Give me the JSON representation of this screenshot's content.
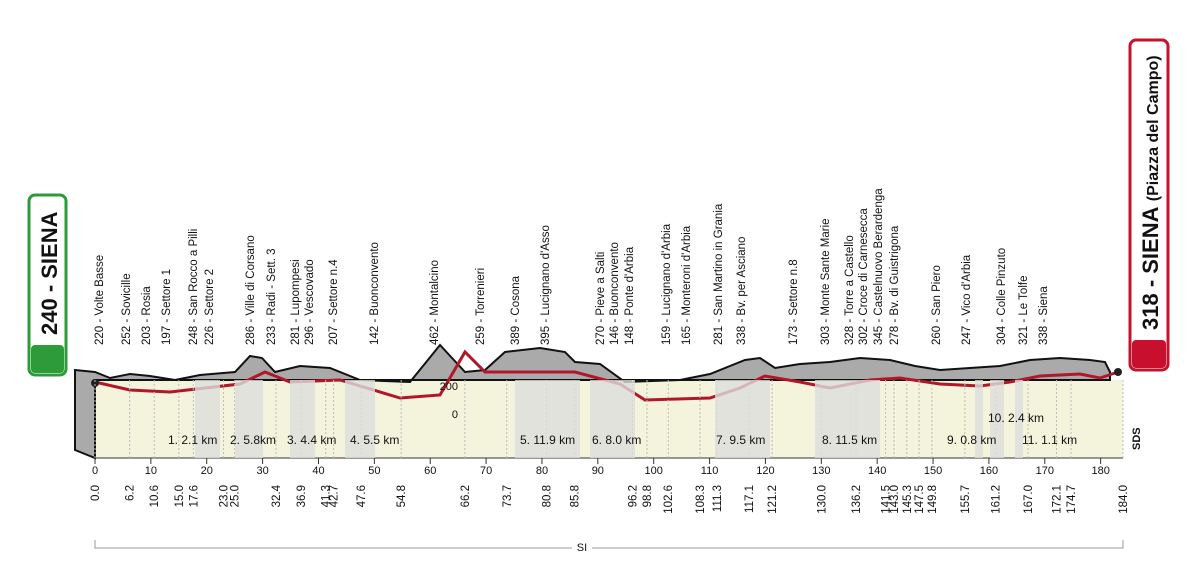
{
  "start": {
    "label": "240 - SIENA"
  },
  "finish": {
    "label": "318 - SIENA",
    "sub": "(Piazza del Campo)"
  },
  "waypoints": [
    "220 - Volte Basse",
    "252 - Sovicille",
    "203 - Rosia",
    "197 - Settore 1",
    "248 - San Rocco a Pilli",
    "226 - Settore 2",
    "286 - Ville di Corsano",
    "233 - Radi - Sett. 3",
    "281 - Lupompesi",
    "296 - Vescovado",
    "207 - Settore n.4",
    "142 - Buonconvento",
    "462 - Montalcino",
    "259 - Torrenieri",
    "389 - Cosona",
    "395 - Lucignano d'Asso",
    "270 - Pieve a Salti",
    "146 - Buonconvento",
    "148 - Ponte d'Arbia",
    "159 - Lucignano d'Arbia",
    "165 - Monteroni d'Arbia",
    "281 - San Martino in Grania",
    "338 - Bv. per Asciano",
    "173 - Settore n.8",
    "303 - Monte Sante Marie",
    "328 - Torre a Castello",
    "302 - Croce di Carnesecca",
    "345 - Castelnuovo Berardenga",
    "278 - Bv. di Guistrigona",
    "260 - San Piero",
    "247 - Vico d'Arbia",
    "304 - Colle Pinzuto",
    "321 - Le Tolfe",
    "338 - Siena"
  ],
  "km_marks": [
    "0.0",
    "6.2",
    "10.6",
    "15.0",
    "17.6",
    "23.0",
    "25.0",
    "32.4",
    "36.9",
    "41.3",
    "42.7",
    "47.6",
    "54.8",
    "66.2",
    "73.7",
    "80.8",
    "85.8",
    "96.2",
    "98.8",
    "102.6",
    "108.3",
    "111.3",
    "117.1",
    "121.2",
    "130.0",
    "136.2",
    "141.5",
    "143.0",
    "145.3",
    "147.5",
    "149.8",
    "155.7",
    "161.2",
    "167.0",
    "172.1",
    "174.7",
    "184.0"
  ],
  "axis_ticks": [
    0,
    10,
    20,
    30,
    40,
    50,
    60,
    70,
    80,
    90,
    100,
    110,
    120,
    130,
    140,
    150,
    160,
    170,
    180
  ],
  "altitude_ticks": [
    200,
    0
  ],
  "sectors": [
    "1. 2.1 km",
    "2. 5.8km",
    "3. 4.4 km",
    "4. 5.5 km",
    "5. 11.9 km",
    "6. 8.0 km",
    "7. 9.5 km",
    "8. 11.5 km",
    "9. 0.8 km",
    "10. 2.4 km",
    "11. 1.1 km"
  ],
  "region": "SI",
  "logo": "SDS"
}
